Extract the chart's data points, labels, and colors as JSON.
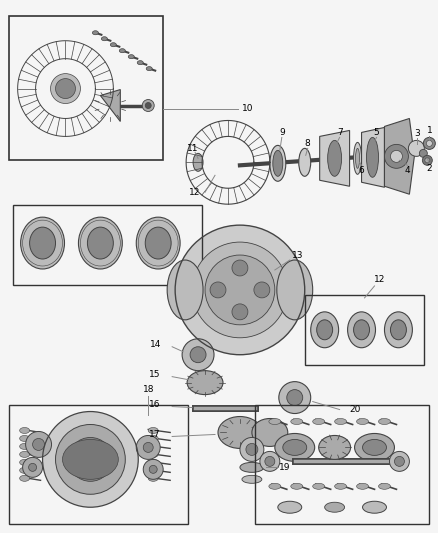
{
  "background_color": "#f5f5f5",
  "fig_width": 4.38,
  "fig_height": 5.33,
  "dpi": 100,
  "line_color": "#888888",
  "text_color": "#000000",
  "part_color": "#444444",
  "part_fill": "#cccccc",
  "dark_fill": "#666666"
}
